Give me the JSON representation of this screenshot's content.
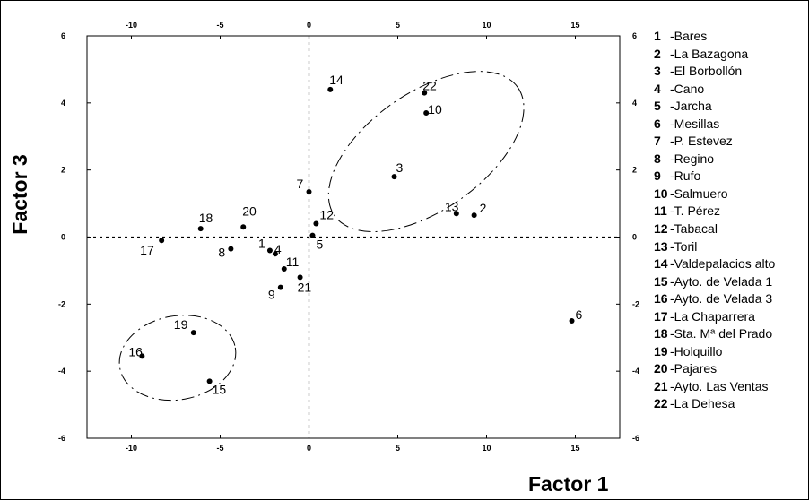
{
  "chart_data": {
    "type": "scatter",
    "xlabel": "Factor 1",
    "ylabel": "Factor 3",
    "xlim": [
      -12.5,
      17.5
    ],
    "ylim": [
      -6,
      6
    ],
    "xticks": [
      -10,
      -5,
      0,
      5,
      10,
      15
    ],
    "yticks": [
      -6,
      -4,
      -2,
      0,
      2,
      4,
      6
    ],
    "xtick_labels": [
      "-10",
      "-5",
      "0",
      "5",
      "10",
      "15"
    ],
    "ytick_labels": [
      "-6",
      "-4",
      "-2",
      "0",
      "2",
      "4",
      "6"
    ],
    "grid": false,
    "reference_lines": {
      "x": 0,
      "y": 0,
      "style": "dotted"
    },
    "legend_position": "right",
    "points": [
      {
        "id": "1",
        "name": "Bares",
        "x": -2.2,
        "y": -0.4
      },
      {
        "id": "2",
        "name": "La Bazagona",
        "x": 9.3,
        "y": 0.65
      },
      {
        "id": "3",
        "name": "El Borbollón",
        "x": 4.8,
        "y": 1.8
      },
      {
        "id": "4",
        "name": "Cano",
        "x": -1.9,
        "y": -0.5
      },
      {
        "id": "5",
        "name": "Jarcha",
        "x": 0.2,
        "y": 0.05
      },
      {
        "id": "6",
        "name": "Mesillas",
        "x": 14.8,
        "y": -2.5
      },
      {
        "id": "7",
        "name": "P. Estevez",
        "x": 0.0,
        "y": 1.35
      },
      {
        "id": "8",
        "name": "Regino",
        "x": -4.4,
        "y": -0.35
      },
      {
        "id": "9",
        "name": "Rufo",
        "x": -1.6,
        "y": -1.5
      },
      {
        "id": "10",
        "name": "Salmuero",
        "x": 6.6,
        "y": 3.7
      },
      {
        "id": "11",
        "name": "T. Pérez",
        "x": -1.4,
        "y": -0.95
      },
      {
        "id": "12",
        "name": "Tabacal",
        "x": 0.4,
        "y": 0.4
      },
      {
        "id": "13",
        "name": "Toril",
        "x": 8.3,
        "y": 0.7
      },
      {
        "id": "14",
        "name": "Valdepalacios alto",
        "x": 1.2,
        "y": 4.4
      },
      {
        "id": "15",
        "name": "Ayto. de Velada 1",
        "x": -5.6,
        "y": -4.3
      },
      {
        "id": "16",
        "name": "Ayto. de Velada 3",
        "x": -9.4,
        "y": -3.55
      },
      {
        "id": "17",
        "name": "La Chaparrera",
        "x": -8.3,
        "y": -0.1
      },
      {
        "id": "18",
        "name": "Sta. Mª del Prado",
        "x": -6.1,
        "y": 0.25
      },
      {
        "id": "19",
        "name": "Holquillo",
        "x": -6.5,
        "y": -2.85
      },
      {
        "id": "20",
        "name": "Pajares",
        "x": -3.7,
        "y": 0.3
      },
      {
        "id": "21",
        "name": "Ayto. Las Ventas",
        "x": -0.5,
        "y": -1.2
      },
      {
        "id": "22",
        "name": "La Dehesa",
        "x": 6.5,
        "y": 4.3
      }
    ],
    "groups": [
      {
        "center_x": 6.6,
        "center_y": 2.55,
        "width": 12.6,
        "height": 3.5,
        "angle": -35,
        "style": "dash-dot"
      },
      {
        "center_x": -7.4,
        "center_y": -3.6,
        "width": 6.6,
        "height": 2.5,
        "angle": -10,
        "style": "dash-dot"
      }
    ]
  }
}
